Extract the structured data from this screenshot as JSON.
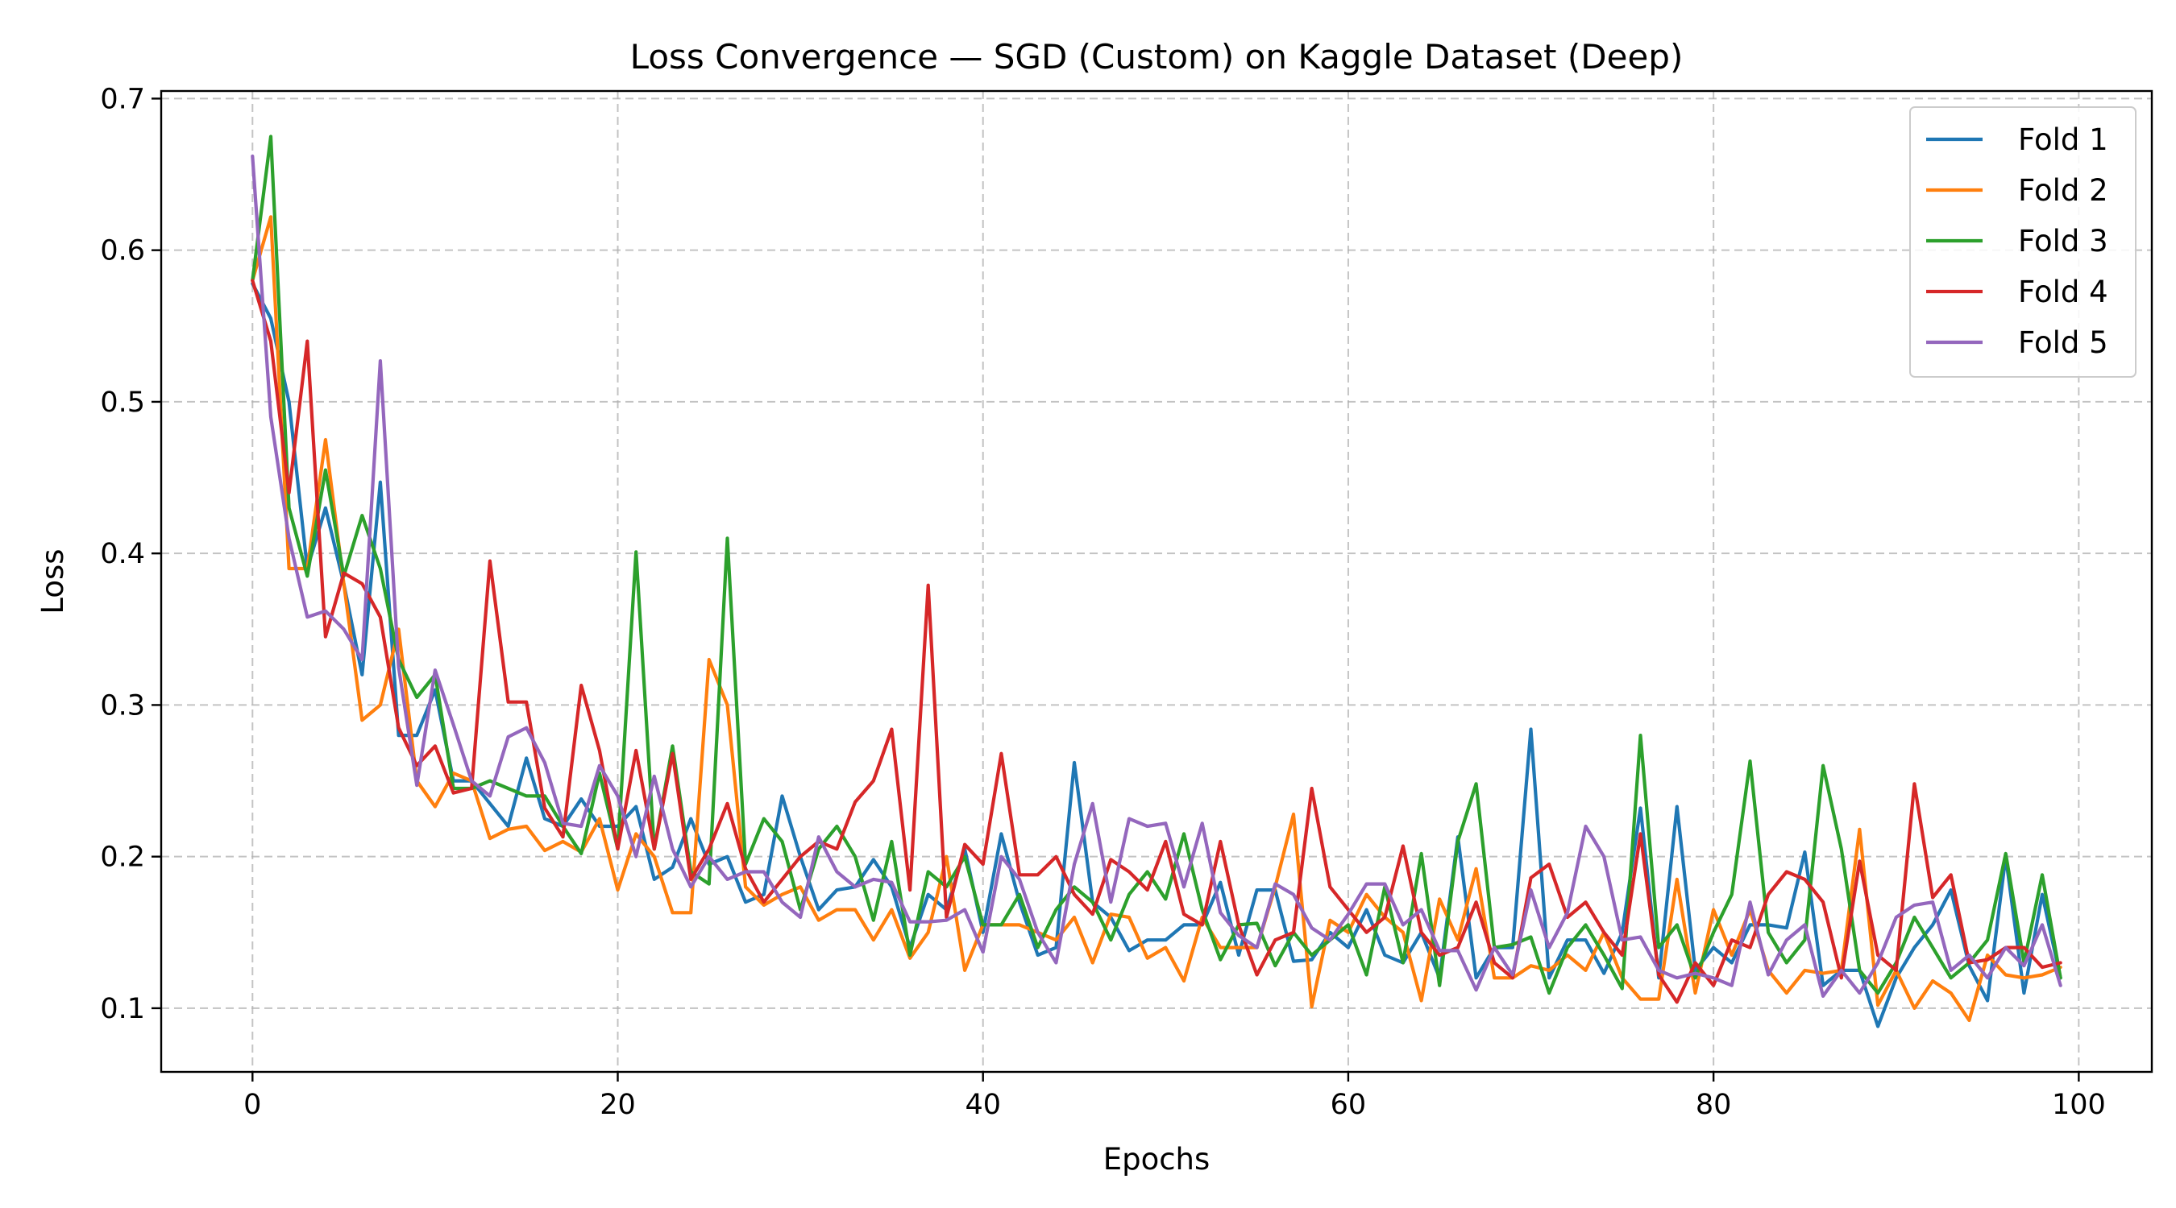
{
  "chart_data": {
    "type": "line",
    "title": "Loss Convergence — SGD (Custom) on Kaggle Dataset (Deep)",
    "xlabel": "Epochs",
    "ylabel": "Loss",
    "xlim": [
      -5,
      104
    ],
    "ylim": [
      0.058,
      0.705
    ],
    "xticks": [
      0,
      20,
      40,
      60,
      80,
      100
    ],
    "yticks": [
      0.1,
      0.2,
      0.3,
      0.4,
      0.5,
      0.6,
      0.7
    ],
    "grid": true,
    "legend_position": "top-right",
    "x": [
      0,
      1,
      2,
      3,
      4,
      5,
      6,
      7,
      8,
      9,
      10,
      11,
      12,
      13,
      14,
      15,
      16,
      17,
      18,
      19,
      20,
      21,
      22,
      23,
      24,
      25,
      26,
      27,
      28,
      29,
      30,
      31,
      32,
      33,
      34,
      35,
      36,
      37,
      38,
      39,
      40,
      41,
      42,
      43,
      44,
      45,
      46,
      47,
      48,
      49,
      50,
      51,
      52,
      53,
      54,
      55,
      56,
      57,
      58,
      59,
      60,
      61,
      62,
      63,
      64,
      65,
      66,
      67,
      68,
      69,
      70,
      71,
      72,
      73,
      74,
      75,
      76,
      77,
      78,
      79,
      80,
      81,
      82,
      83,
      84,
      85,
      86,
      87,
      88,
      89,
      90,
      91,
      92,
      93,
      94,
      95,
      96,
      97,
      98,
      99
    ],
    "series": [
      {
        "name": "Fold 1",
        "color": "#1f77b4",
        "values": [
          0.578,
          0.555,
          0.5,
          0.39,
          0.43,
          0.38,
          0.32,
          0.447,
          0.28,
          0.28,
          0.31,
          0.25,
          0.25,
          0.235,
          0.22,
          0.265,
          0.225,
          0.22,
          0.238,
          0.22,
          0.22,
          0.233,
          0.185,
          0.193,
          0.225,
          0.195,
          0.2,
          0.17,
          0.175,
          0.24,
          0.2,
          0.165,
          0.178,
          0.18,
          0.198,
          0.18,
          0.14,
          0.175,
          0.165,
          0.205,
          0.15,
          0.215,
          0.17,
          0.135,
          0.14,
          0.262,
          0.17,
          0.16,
          0.138,
          0.145,
          0.145,
          0.155,
          0.155,
          0.183,
          0.135,
          0.178,
          0.178,
          0.131,
          0.132,
          0.15,
          0.14,
          0.165,
          0.135,
          0.13,
          0.15,
          0.12,
          0.213,
          0.12,
          0.14,
          0.14,
          0.284,
          0.12,
          0.145,
          0.145,
          0.123,
          0.15,
          0.232,
          0.12,
          0.233,
          0.125,
          0.14,
          0.13,
          0.155,
          0.155,
          0.153,
          0.203,
          0.115,
          0.125,
          0.125,
          0.088,
          0.12,
          0.14,
          0.155,
          0.178,
          0.128,
          0.105,
          0.2,
          0.11,
          0.175,
          0.12
        ]
      },
      {
        "name": "Fold 2",
        "color": "#ff7f0e",
        "values": [
          0.58,
          0.622,
          0.39,
          0.39,
          0.475,
          0.38,
          0.29,
          0.3,
          0.35,
          0.25,
          0.233,
          0.255,
          0.25,
          0.212,
          0.218,
          0.22,
          0.204,
          0.21,
          0.203,
          0.225,
          0.178,
          0.215,
          0.2,
          0.163,
          0.163,
          0.33,
          0.3,
          0.18,
          0.168,
          0.175,
          0.18,
          0.158,
          0.165,
          0.165,
          0.145,
          0.165,
          0.133,
          0.15,
          0.2,
          0.125,
          0.155,
          0.155,
          0.155,
          0.15,
          0.145,
          0.16,
          0.13,
          0.162,
          0.16,
          0.133,
          0.14,
          0.118,
          0.16,
          0.14,
          0.14,
          0.14,
          0.18,
          0.228,
          0.101,
          0.158,
          0.15,
          0.175,
          0.16,
          0.15,
          0.105,
          0.172,
          0.145,
          0.192,
          0.12,
          0.12,
          0.128,
          0.125,
          0.135,
          0.125,
          0.15,
          0.12,
          0.106,
          0.106,
          0.185,
          0.11,
          0.165,
          0.135,
          0.165,
          0.125,
          0.11,
          0.125,
          0.123,
          0.125,
          0.218,
          0.102,
          0.125,
          0.1,
          0.118,
          0.11,
          0.092,
          0.135,
          0.122,
          0.12,
          0.122,
          0.127
        ]
      },
      {
        "name": "Fold 3",
        "color": "#2ca02c",
        "values": [
          0.58,
          0.675,
          0.43,
          0.385,
          0.455,
          0.385,
          0.425,
          0.39,
          0.33,
          0.305,
          0.32,
          0.245,
          0.245,
          0.25,
          0.245,
          0.24,
          0.24,
          0.22,
          0.202,
          0.255,
          0.205,
          0.401,
          0.205,
          0.273,
          0.19,
          0.182,
          0.41,
          0.195,
          0.225,
          0.21,
          0.165,
          0.205,
          0.22,
          0.2,
          0.158,
          0.21,
          0.135,
          0.19,
          0.18,
          0.2,
          0.155,
          0.155,
          0.175,
          0.14,
          0.165,
          0.18,
          0.17,
          0.145,
          0.175,
          0.19,
          0.172,
          0.215,
          0.165,
          0.132,
          0.155,
          0.156,
          0.128,
          0.15,
          0.135,
          0.145,
          0.155,
          0.122,
          0.18,
          0.13,
          0.202,
          0.115,
          0.21,
          0.248,
          0.14,
          0.142,
          0.147,
          0.11,
          0.14,
          0.155,
          0.135,
          0.113,
          0.28,
          0.14,
          0.155,
          0.12,
          0.15,
          0.175,
          0.263,
          0.15,
          0.13,
          0.145,
          0.26,
          0.205,
          0.125,
          0.11,
          0.13,
          0.16,
          0.14,
          0.12,
          0.13,
          0.145,
          0.202,
          0.13,
          0.188,
          0.12
        ]
      },
      {
        "name": "Fold 4",
        "color": "#d62728",
        "values": [
          0.58,
          0.54,
          0.44,
          0.54,
          0.345,
          0.387,
          0.38,
          0.358,
          0.285,
          0.26,
          0.273,
          0.242,
          0.245,
          0.395,
          0.302,
          0.302,
          0.232,
          0.213,
          0.313,
          0.27,
          0.205,
          0.27,
          0.205,
          0.268,
          0.185,
          0.205,
          0.235,
          0.192,
          0.17,
          0.185,
          0.2,
          0.21,
          0.205,
          0.236,
          0.25,
          0.284,
          0.178,
          0.379,
          0.16,
          0.208,
          0.195,
          0.268,
          0.188,
          0.188,
          0.2,
          0.175,
          0.162,
          0.198,
          0.19,
          0.178,
          0.21,
          0.162,
          0.155,
          0.21,
          0.155,
          0.122,
          0.145,
          0.15,
          0.245,
          0.18,
          0.165,
          0.15,
          0.16,
          0.207,
          0.15,
          0.135,
          0.14,
          0.17,
          0.13,
          0.12,
          0.186,
          0.195,
          0.16,
          0.17,
          0.15,
          0.135,
          0.215,
          0.122,
          0.104,
          0.13,
          0.115,
          0.145,
          0.14,
          0.175,
          0.19,
          0.185,
          0.17,
          0.12,
          0.197,
          0.135,
          0.125,
          0.248,
          0.173,
          0.188,
          0.13,
          0.132,
          0.14,
          0.14,
          0.127,
          0.13
        ]
      },
      {
        "name": "Fold 5",
        "color": "#9467bd",
        "values": [
          0.662,
          0.49,
          0.41,
          0.358,
          0.362,
          0.35,
          0.33,
          0.527,
          0.325,
          0.247,
          0.323,
          0.287,
          0.25,
          0.24,
          0.279,
          0.285,
          0.262,
          0.222,
          0.22,
          0.26,
          0.24,
          0.2,
          0.253,
          0.205,
          0.18,
          0.2,
          0.185,
          0.19,
          0.19,
          0.17,
          0.16,
          0.213,
          0.19,
          0.18,
          0.185,
          0.183,
          0.157,
          0.157,
          0.158,
          0.165,
          0.137,
          0.2,
          0.185,
          0.15,
          0.13,
          0.195,
          0.235,
          0.17,
          0.225,
          0.22,
          0.222,
          0.18,
          0.222,
          0.163,
          0.148,
          0.14,
          0.182,
          0.175,
          0.153,
          0.145,
          0.162,
          0.182,
          0.182,
          0.155,
          0.165,
          0.138,
          0.138,
          0.112,
          0.14,
          0.122,
          0.178,
          0.14,
          0.163,
          0.22,
          0.2,
          0.145,
          0.147,
          0.125,
          0.12,
          0.123,
          0.12,
          0.115,
          0.17,
          0.122,
          0.145,
          0.155,
          0.108,
          0.125,
          0.11,
          0.13,
          0.16,
          0.168,
          0.17,
          0.125,
          0.135,
          0.12,
          0.14,
          0.128,
          0.155,
          0.115
        ]
      }
    ]
  }
}
